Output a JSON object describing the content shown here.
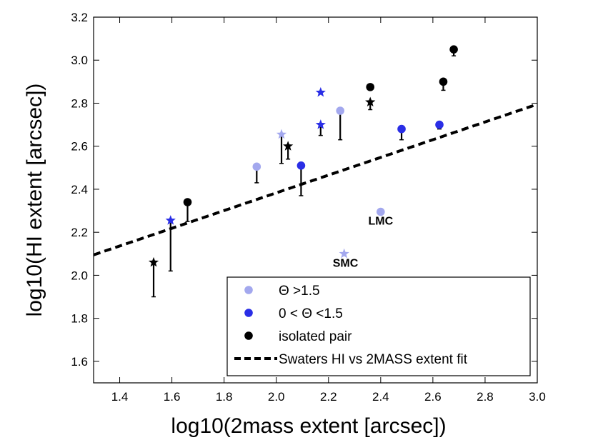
{
  "chart_data": {
    "type": "scatter",
    "xlabel": "log10(2mass extent [arcsec])",
    "ylabel": "log10(HI extent [arcsec])",
    "xlim": [
      1.3,
      3.0
    ],
    "ylim": [
      1.5,
      3.2
    ],
    "xticks": [
      "1.4",
      "1.6",
      "1.8",
      "2.0",
      "2.2",
      "2.4",
      "2.6",
      "2.8",
      "3.0"
    ],
    "yticks": [
      "1.6",
      "1.8",
      "2.0",
      "2.2",
      "2.4",
      "2.6",
      "2.8",
      "3.0",
      "3.2"
    ],
    "grid": false,
    "legend_position": "bottom-right",
    "colors": {
      "light": "#a3a8ee",
      "blue": "#2a2ee6",
      "black": "#000000"
    },
    "legend": [
      {
        "label": "Θ >1.5",
        "marker": "circle",
        "color": "light"
      },
      {
        "label": "0  < Θ <1.5",
        "marker": "circle",
        "color": "blue"
      },
      {
        "label": "isolated pair",
        "marker": "circle",
        "color": "black"
      },
      {
        "label": "Swaters HI vs 2MASS extent fit",
        "marker": "dashed-line",
        "color": "black"
      }
    ],
    "fit_line": {
      "style": "dashed",
      "points": [
        [
          1.3,
          2.095
        ],
        [
          3.0,
          2.795
        ]
      ]
    },
    "points": [
      {
        "x": 1.53,
        "y": 2.06,
        "marker": "star",
        "color": "black",
        "err_low": 1.9
      },
      {
        "x": 1.595,
        "y": 2.255,
        "marker": "star",
        "color": "blue",
        "err_low": 2.02
      },
      {
        "x": 1.66,
        "y": 2.34,
        "marker": "circle",
        "color": "black",
        "err_low": 2.25
      },
      {
        "x": 1.925,
        "y": 2.505,
        "marker": "circle",
        "color": "light",
        "err_low": 2.43
      },
      {
        "x": 2.02,
        "y": 2.655,
        "marker": "star",
        "color": "light",
        "err_low": 2.52
      },
      {
        "x": 2.045,
        "y": 2.6,
        "marker": "star",
        "color": "black",
        "err_low": 2.54
      },
      {
        "x": 2.095,
        "y": 2.51,
        "marker": "circle",
        "color": "blue",
        "err_low": 2.37
      },
      {
        "x": 2.17,
        "y": 2.85,
        "marker": "star",
        "color": "blue",
        "err_low": null
      },
      {
        "x": 2.17,
        "y": 2.7,
        "marker": "star",
        "color": "blue",
        "err_low": 2.65
      },
      {
        "x": 2.245,
        "y": 2.765,
        "marker": "circle",
        "color": "light",
        "err_low": 2.63
      },
      {
        "x": 2.26,
        "y": 2.1,
        "marker": "star",
        "color": "light",
        "err_low": null
      },
      {
        "x": 2.36,
        "y": 2.875,
        "marker": "circle",
        "color": "black",
        "err_low": null
      },
      {
        "x": 2.36,
        "y": 2.805,
        "marker": "star",
        "color": "black",
        "err_low": 2.77
      },
      {
        "x": 2.4,
        "y": 2.295,
        "marker": "circle",
        "color": "light",
        "err_low": null
      },
      {
        "x": 2.48,
        "y": 2.68,
        "marker": "circle",
        "color": "blue",
        "err_low": 2.63
      },
      {
        "x": 2.625,
        "y": 2.7,
        "marker": "circle",
        "color": "blue",
        "err_low": 2.68
      },
      {
        "x": 2.64,
        "y": 2.9,
        "marker": "circle",
        "color": "black",
        "err_low": 2.86
      },
      {
        "x": 2.68,
        "y": 3.05,
        "marker": "circle",
        "color": "black",
        "err_low": 3.02
      }
    ],
    "annotations": [
      {
        "text": "LMC",
        "x": 2.4,
        "y": 2.235
      },
      {
        "text": "SMC",
        "x": 2.265,
        "y": 2.04
      }
    ]
  }
}
